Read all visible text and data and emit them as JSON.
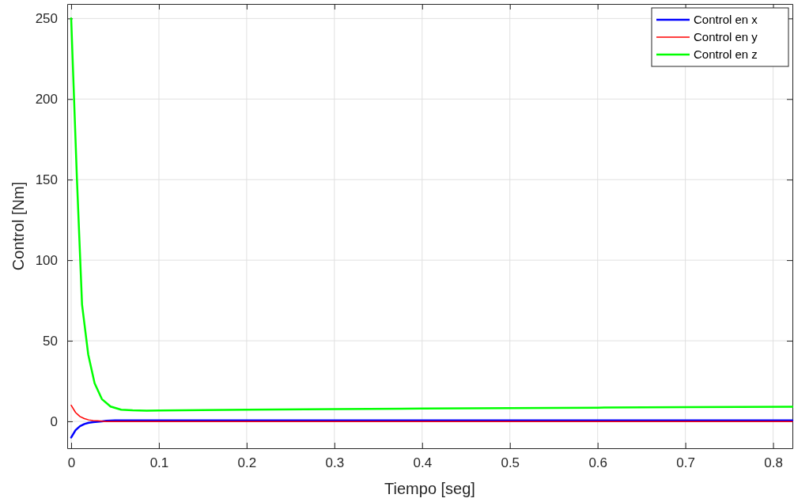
{
  "chart_data": {
    "type": "line",
    "xlabel": "Tiempo [seg]",
    "ylabel": "Control [Nm]",
    "xlim": [
      -0.0045,
      0.822
    ],
    "ylim": [
      -16.7,
      259
    ],
    "xticks": [
      {
        "value": 0,
        "label": "0"
      },
      0.1,
      0.2,
      0.3,
      0.4,
      0.5,
      0.6,
      0.7,
      0.8
    ],
    "yticks": [
      0,
      50,
      100,
      150,
      200,
      250
    ],
    "grid": true,
    "legend": "top right",
    "line_style": "solid",
    "marker": "none",
    "series": [
      {
        "name": "Control en x",
        "color": "#0000ff",
        "x": [
          0,
          0.005,
          0.01,
          0.015,
          0.02,
          0.025,
          0.03,
          0.035,
          0.04,
          0.05,
          0.1,
          0.3,
          0.5,
          0.7,
          0.822
        ],
        "values": [
          -10,
          -5.5,
          -3,
          -1.7,
          -0.9,
          -0.5,
          -0.3,
          0,
          0.3,
          0.6,
          0.6,
          0.6,
          0.6,
          0.6,
          0.6
        ]
      },
      {
        "name": "Control en y",
        "color": "#ff0000",
        "x": [
          0,
          0.005,
          0.01,
          0.015,
          0.02,
          0.025,
          0.03,
          0.035,
          0.04,
          0.05,
          0.1,
          0.3,
          0.5,
          0.7,
          0.822
        ],
        "values": [
          10,
          5.5,
          3,
          1.7,
          0.9,
          0.5,
          0.3,
          0.1,
          -0.2,
          -0.2,
          -0.2,
          -0.2,
          -0.2,
          -0.2,
          -0.2
        ]
      },
      {
        "name": "Control en z",
        "color": "#00ff00",
        "x": [
          0,
          0.0066,
          0.0124,
          0.0194,
          0.0267,
          0.035,
          0.0449,
          0.057,
          0.07,
          0.086,
          0.1,
          0.2,
          0.3,
          0.4,
          0.5,
          0.6,
          0.7,
          0.822
        ],
        "values": [
          250,
          150,
          72.4,
          41.6,
          23.7,
          13.8,
          9.2,
          7.2,
          6.8,
          6.6,
          6.7,
          7.2,
          7.6,
          7.9,
          8.2,
          8.5,
          8.8,
          9.1
        ]
      }
    ]
  }
}
